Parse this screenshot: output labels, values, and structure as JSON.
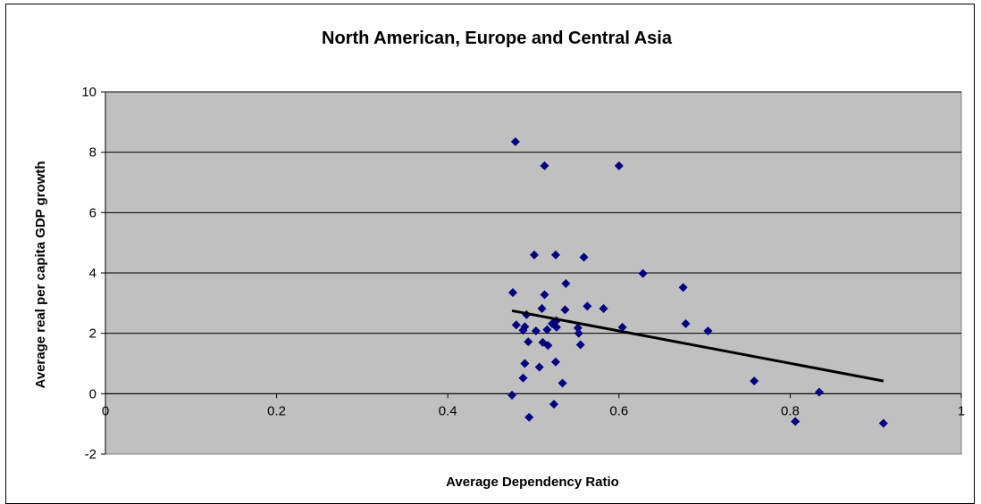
{
  "chart_data": {
    "type": "scatter",
    "title": "North American, Europe and Central Asia",
    "xlabel": "Average Dependency Ratio",
    "ylabel": "Average real per capita GDP growth",
    "xlim": [
      0,
      1
    ],
    "ylim": [
      -2,
      10
    ],
    "x_ticks": [
      "0",
      "0.2",
      "0.4",
      "0.6",
      "0.8",
      "1"
    ],
    "y_ticks": [
      "-2",
      "0",
      "2",
      "4",
      "6",
      "8",
      "10"
    ],
    "x_tick_values": [
      0,
      0.2,
      0.4,
      0.6,
      0.8,
      1
    ],
    "y_tick_values": [
      -2,
      0,
      2,
      4,
      6,
      8,
      10
    ],
    "grid": "horizontal",
    "legend": "none",
    "colors": {
      "plot_background": "#c0c0c0",
      "marker": "#000080",
      "trendline": "#000000",
      "gridline": "#000000"
    },
    "marker_shape": "diamond",
    "points": [
      [
        0.479,
        8.35
      ],
      [
        0.513,
        7.55
      ],
      [
        0.6,
        7.55
      ],
      [
        0.501,
        4.6
      ],
      [
        0.526,
        4.6
      ],
      [
        0.559,
        4.52
      ],
      [
        0.628,
        3.98
      ],
      [
        0.538,
        3.65
      ],
      [
        0.675,
        3.52
      ],
      [
        0.476,
        3.35
      ],
      [
        0.513,
        3.28
      ],
      [
        0.563,
        2.9
      ],
      [
        0.51,
        2.82
      ],
      [
        0.582,
        2.82
      ],
      [
        0.537,
        2.78
      ],
      [
        0.492,
        2.62
      ],
      [
        0.527,
        2.42
      ],
      [
        0.522,
        2.32
      ],
      [
        0.48,
        2.28
      ],
      [
        0.49,
        2.22
      ],
      [
        0.678,
        2.32
      ],
      [
        0.488,
        2.1
      ],
      [
        0.503,
        2.08
      ],
      [
        0.516,
        2.12
      ],
      [
        0.527,
        2.2
      ],
      [
        0.552,
        2.18
      ],
      [
        0.604,
        2.2
      ],
      [
        0.704,
        2.08
      ],
      [
        0.553,
        2.0
      ],
      [
        0.494,
        1.72
      ],
      [
        0.511,
        1.7
      ],
      [
        0.517,
        1.6
      ],
      [
        0.555,
        1.62
      ],
      [
        0.49,
        1.0
      ],
      [
        0.526,
        1.05
      ],
      [
        0.507,
        0.88
      ],
      [
        0.488,
        0.52
      ],
      [
        0.534,
        0.35
      ],
      [
        0.758,
        0.42
      ],
      [
        0.834,
        0.05
      ],
      [
        0.475,
        -0.05
      ],
      [
        0.524,
        -0.35
      ],
      [
        0.495,
        -0.78
      ],
      [
        0.806,
        -0.92
      ],
      [
        0.909,
        -0.98
      ]
    ],
    "trendline": {
      "type": "linear",
      "x": [
        0.475,
        0.909
      ],
      "y": [
        2.75,
        0.42
      ]
    }
  }
}
